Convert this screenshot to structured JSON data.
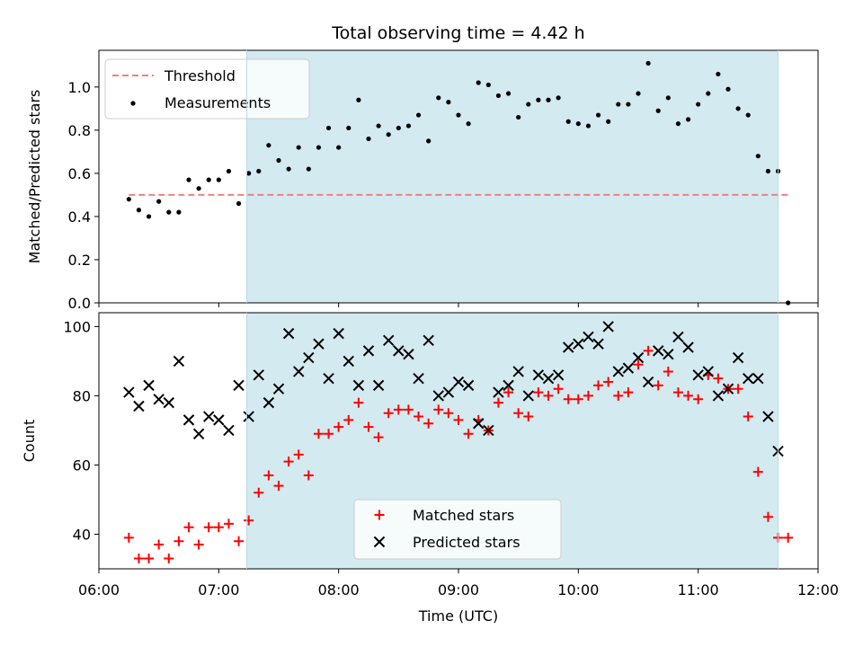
{
  "chart_data": [
    {
      "type": "scatter",
      "title": "Total observing time = 4.42 h",
      "xlabel": "",
      "ylabel": "Matched/Predicted stars",
      "xlim": [
        "06:00",
        "12:00"
      ],
      "ylim": [
        0,
        1.17
      ],
      "yticks": [
        "0.0",
        "0.2",
        "0.4",
        "0.6",
        "0.8",
        "1.0"
      ],
      "highlight_span": {
        "start": "07:14",
        "end": "11:40",
        "color": "#d3eaf0"
      },
      "legend": {
        "placement": "upper-left",
        "entries": [
          "Threshold",
          "Measurements"
        ]
      },
      "series": [
        {
          "name": "Threshold",
          "style": "dashed-line",
          "color": "#f08080",
          "x": [
            "06:15",
            "11:45"
          ],
          "y": [
            0.5,
            0.5
          ]
        },
        {
          "name": "Measurements",
          "style": "dot",
          "color": "#000000",
          "x": [
            "06:15",
            "06:20",
            "06:25",
            "06:30",
            "06:35",
            "06:40",
            "06:45",
            "06:50",
            "06:55",
            "07:00",
            "07:05",
            "07:10",
            "07:15",
            "07:20",
            "07:25",
            "07:30",
            "07:35",
            "07:40",
            "07:45",
            "07:50",
            "07:55",
            "08:00",
            "08:05",
            "08:10",
            "08:15",
            "08:20",
            "08:25",
            "08:30",
            "08:35",
            "08:40",
            "08:45",
            "08:50",
            "08:55",
            "09:00",
            "09:05",
            "09:10",
            "09:15",
            "09:20",
            "09:25",
            "09:30",
            "09:35",
            "09:40",
            "09:45",
            "09:50",
            "09:55",
            "10:00",
            "10:05",
            "10:10",
            "10:15",
            "10:20",
            "10:25",
            "10:30",
            "10:35",
            "10:40",
            "10:45",
            "10:50",
            "10:55",
            "11:00",
            "11:05",
            "11:10",
            "11:15",
            "11:20",
            "11:25",
            "11:30",
            "11:35",
            "11:40",
            "11:45"
          ],
          "y": [
            0.48,
            0.43,
            0.4,
            0.47,
            0.42,
            0.42,
            0.57,
            0.53,
            0.57,
            0.57,
            0.61,
            0.46,
            0.6,
            0.61,
            0.73,
            0.66,
            0.62,
            0.72,
            0.62,
            0.72,
            0.81,
            0.72,
            0.81,
            0.94,
            0.76,
            0.82,
            0.78,
            0.81,
            0.82,
            0.87,
            0.75,
            0.95,
            0.93,
            0.87,
            0.83,
            1.02,
            1.01,
            0.96,
            0.97,
            0.86,
            0.92,
            0.94,
            0.94,
            0.95,
            0.84,
            0.83,
            0.82,
            0.87,
            0.84,
            0.92,
            0.92,
            0.97,
            1.11,
            0.89,
            0.95,
            0.83,
            0.85,
            0.92,
            0.97,
            1.06,
            0.99,
            0.9,
            0.87,
            0.68,
            0.61,
            0.61,
            0.0
          ]
        }
      ]
    },
    {
      "type": "scatter",
      "title": "",
      "xlabel": "Time (UTC)",
      "ylabel": "Count",
      "xlim": [
        "06:00",
        "12:00"
      ],
      "ylim": [
        30,
        104
      ],
      "xticks": [
        "06:00",
        "07:00",
        "08:00",
        "09:00",
        "10:00",
        "11:00",
        "12:00"
      ],
      "yticks": [
        "40",
        "60",
        "80",
        "100"
      ],
      "highlight_span": {
        "start": "07:14",
        "end": "11:40",
        "color": "#d3eaf0"
      },
      "legend": {
        "placement": "lower-center",
        "entries": [
          "Matched stars",
          "Predicted stars"
        ]
      },
      "series": [
        {
          "name": "Matched stars",
          "style": "plus",
          "color": "#ff0000",
          "x": [
            "06:15",
            "06:20",
            "06:25",
            "06:30",
            "06:35",
            "06:40",
            "06:45",
            "06:50",
            "06:55",
            "07:00",
            "07:05",
            "07:10",
            "07:15",
            "07:20",
            "07:25",
            "07:30",
            "07:35",
            "07:40",
            "07:45",
            "07:50",
            "07:55",
            "08:00",
            "08:05",
            "08:10",
            "08:15",
            "08:20",
            "08:25",
            "08:30",
            "08:35",
            "08:40",
            "08:45",
            "08:50",
            "08:55",
            "09:00",
            "09:05",
            "09:10",
            "09:15",
            "09:20",
            "09:25",
            "09:30",
            "09:35",
            "09:40",
            "09:45",
            "09:50",
            "09:55",
            "10:00",
            "10:05",
            "10:10",
            "10:15",
            "10:20",
            "10:25",
            "10:30",
            "10:35",
            "10:40",
            "10:45",
            "10:50",
            "10:55",
            "11:00",
            "11:05",
            "11:10",
            "11:15",
            "11:20",
            "11:25",
            "11:30",
            "11:35",
            "11:40",
            "11:45"
          ],
          "y": [
            39,
            33,
            33,
            37,
            33,
            38,
            42,
            37,
            42,
            42,
            43,
            38,
            44,
            52,
            57,
            54,
            61,
            63,
            57,
            69,
            69,
            71,
            73,
            78,
            71,
            68,
            75,
            76,
            76,
            74,
            72,
            76,
            75,
            73,
            69,
            73,
            70,
            78,
            81,
            75,
            74,
            81,
            80,
            82,
            79,
            79,
            80,
            83,
            84,
            80,
            81,
            89,
            93,
            83,
            87,
            81,
            80,
            79,
            86,
            85,
            82,
            82,
            74,
            58,
            45,
            39,
            39
          ]
        },
        {
          "name": "Predicted stars",
          "style": "x",
          "color": "#000000",
          "x": [
            "06:15",
            "06:20",
            "06:25",
            "06:30",
            "06:35",
            "06:40",
            "06:45",
            "06:50",
            "06:55",
            "07:00",
            "07:05",
            "07:10",
            "07:15",
            "07:20",
            "07:25",
            "07:30",
            "07:35",
            "07:40",
            "07:45",
            "07:50",
            "07:55",
            "08:00",
            "08:05",
            "08:10",
            "08:15",
            "08:20",
            "08:25",
            "08:30",
            "08:35",
            "08:40",
            "08:45",
            "08:50",
            "08:55",
            "09:00",
            "09:05",
            "09:10",
            "09:15",
            "09:20",
            "09:25",
            "09:30",
            "09:35",
            "09:40",
            "09:45",
            "09:50",
            "09:55",
            "10:00",
            "10:05",
            "10:10",
            "10:15",
            "10:20",
            "10:25",
            "10:30",
            "10:35",
            "10:40",
            "10:45",
            "10:50",
            "10:55",
            "11:00",
            "11:05",
            "11:10",
            "11:15",
            "11:20",
            "11:25",
            "11:30",
            "11:35",
            "11:40"
          ],
          "y": [
            81,
            77,
            83,
            79,
            78,
            90,
            73,
            69,
            74,
            73,
            70,
            83,
            74,
            86,
            78,
            82,
            98,
            87,
            91,
            95,
            85,
            98,
            90,
            83,
            93,
            83,
            96,
            93,
            92,
            85,
            96,
            80,
            81,
            84,
            83,
            72,
            70,
            81,
            83,
            87,
            80,
            86,
            85,
            86,
            94,
            95,
            97,
            95,
            100,
            87,
            88,
            91,
            84,
            93,
            92,
            97,
            94,
            86,
            87,
            80,
            82,
            91,
            85,
            85,
            74,
            64
          ]
        }
      ]
    }
  ]
}
